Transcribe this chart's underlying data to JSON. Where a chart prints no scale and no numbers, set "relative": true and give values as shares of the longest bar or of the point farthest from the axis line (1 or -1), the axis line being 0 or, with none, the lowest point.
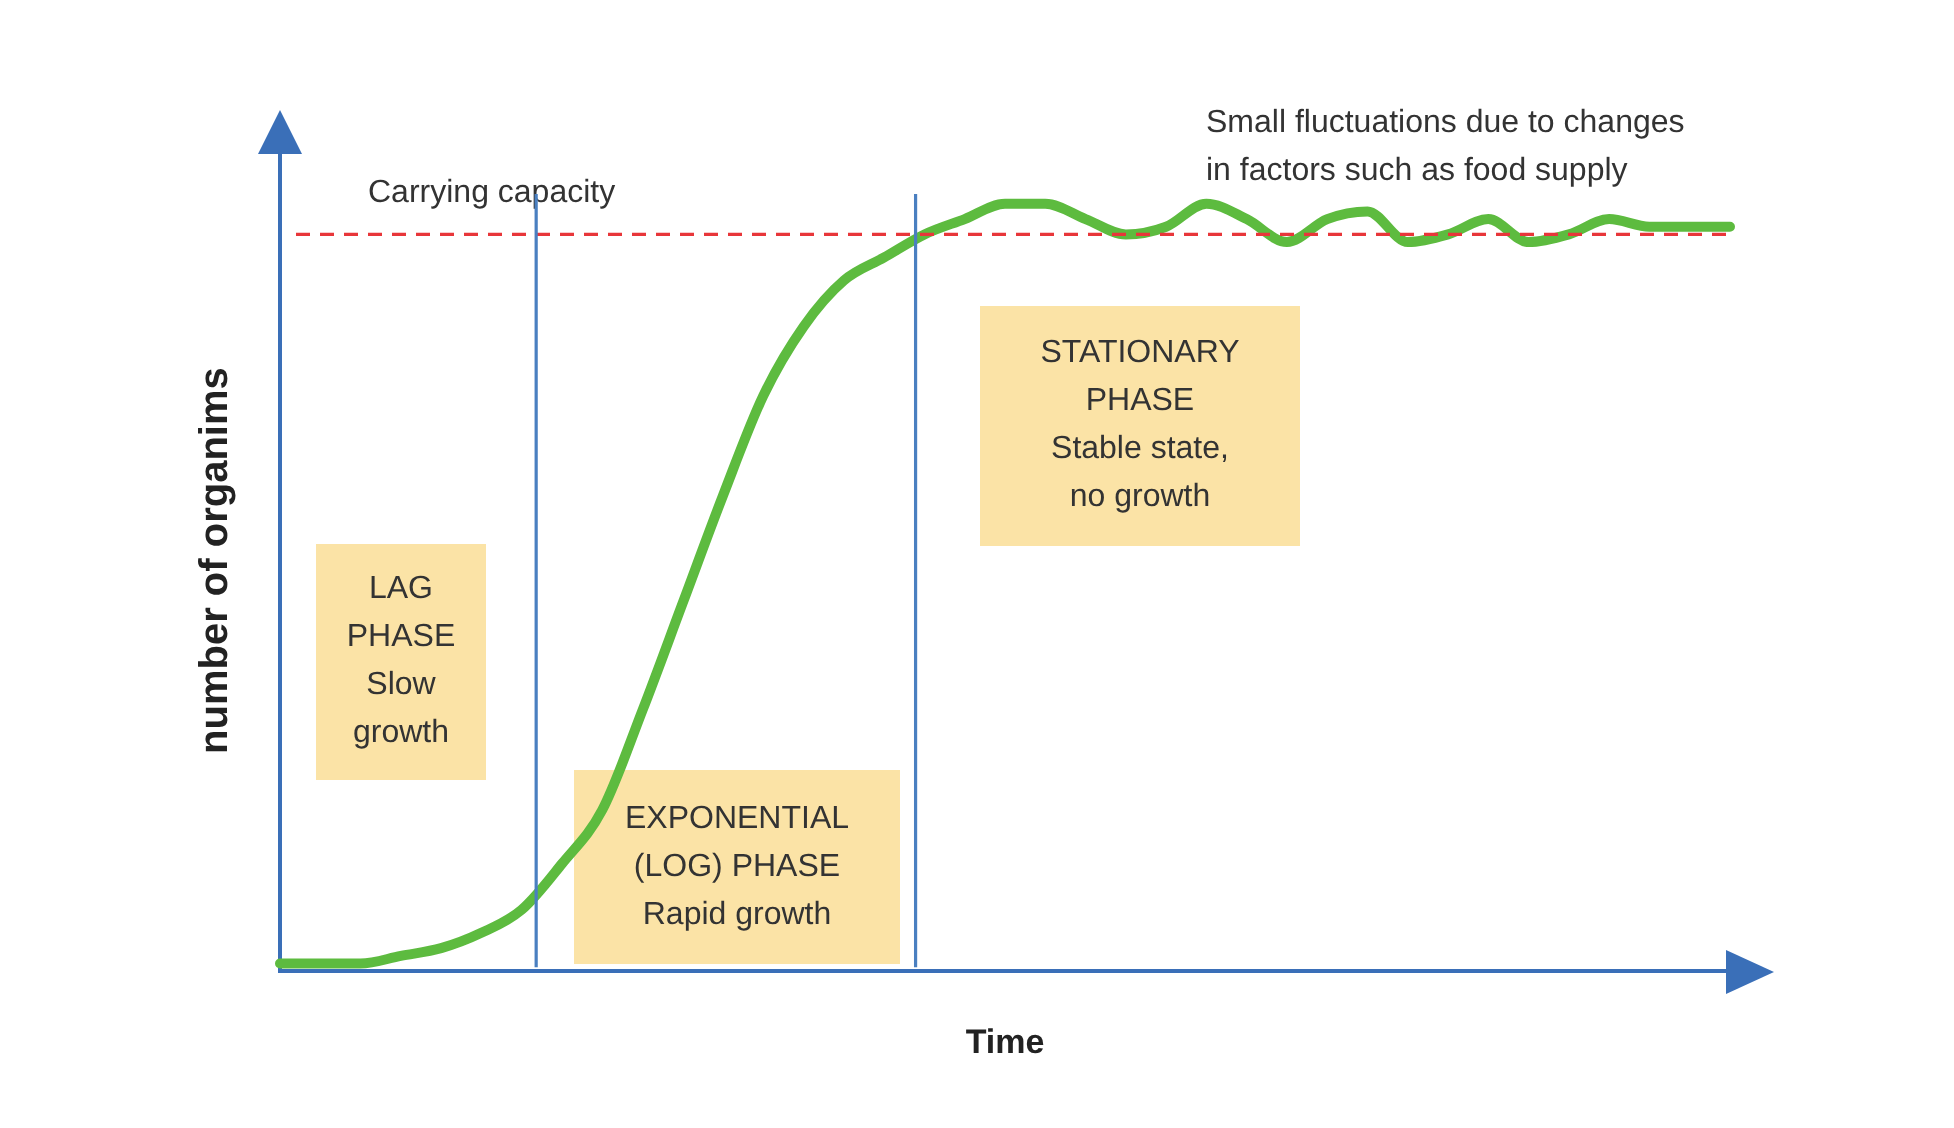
{
  "chart_data": {
    "type": "line",
    "relative": true,
    "xlabel": "Time",
    "ylabel": "number of organims",
    "categories": [
      null,
      null,
      null,
      null,
      null,
      null,
      null,
      null,
      null,
      null,
      null,
      null,
      null,
      null,
      null,
      null,
      null,
      null,
      null,
      null,
      null,
      null,
      null,
      null,
      null,
      null,
      null,
      null,
      null,
      null,
      null,
      null,
      null,
      null,
      null,
      null,
      null
    ],
    "series": [
      {
        "color": "#5dbb3f",
        "values": [
          0.01,
          0.01,
          0.01,
          0.02,
          0.03,
          0.05,
          0.08,
          0.14,
          0.21,
          0.34,
          0.48,
          0.62,
          0.75,
          0.84,
          0.9,
          0.93,
          0.96,
          0.98,
          1.0,
          1.0,
          0.98,
          0.96,
          0.97,
          1.0,
          0.98,
          0.95,
          0.98,
          0.99,
          0.95,
          0.96,
          0.98,
          0.95,
          0.96,
          0.98,
          0.97,
          0.97,
          0.97
        ]
      }
    ],
    "ref_lines": [
      {
        "axis": "y",
        "value": 0.96,
        "label": "Carrying capacity",
        "color": "#e8363a",
        "line_style": "dashed"
      }
    ],
    "annotations": [
      "Small fluctuations due to changes\nin factors such as food supply",
      "LAG\nPHASE\nSlow\ngrowth",
      "EXPONENTIAL\n(LOG) PHASE\nRapid growth",
      "STATIONARY\nPHASE\nStable state,\nno growth"
    ],
    "grid": false,
    "legend": false,
    "tick_labels": false,
    "marker": "none",
    "line_style": "solid"
  }
}
